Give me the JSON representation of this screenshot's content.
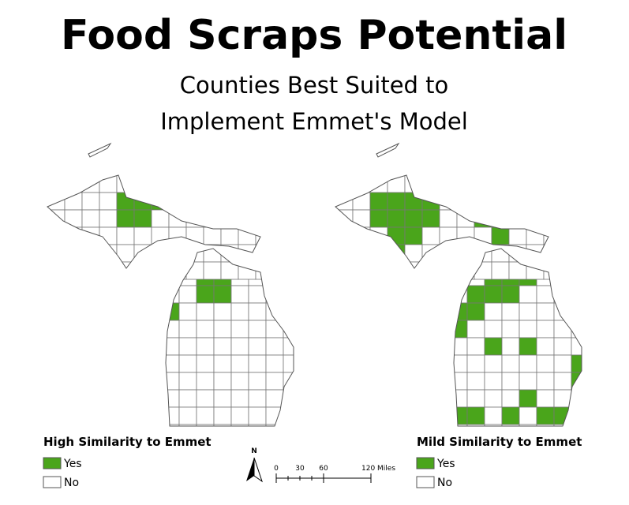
{
  "title": "Food Scraps Potential",
  "subtitle": [
    "Counties Best Suited to",
    "Implement Emmet's Model"
  ],
  "maps": [
    {
      "legend_title": "High Similarity to Emmet",
      "legend": [
        {
          "label": "Yes",
          "color": "#4aa51b"
        },
        {
          "label": "No",
          "color": "#ffffff"
        }
      ]
    },
    {
      "legend_title": "Mild Similarity to Emmet",
      "legend": [
        {
          "label": "Yes",
          "color": "#4aa51b"
        },
        {
          "label": "No",
          "color": "#ffffff"
        }
      ]
    }
  ],
  "north_arrow": "N",
  "scale_bar": {
    "labels": [
      "0",
      "30",
      "60",
      "120 Miles"
    ]
  }
}
